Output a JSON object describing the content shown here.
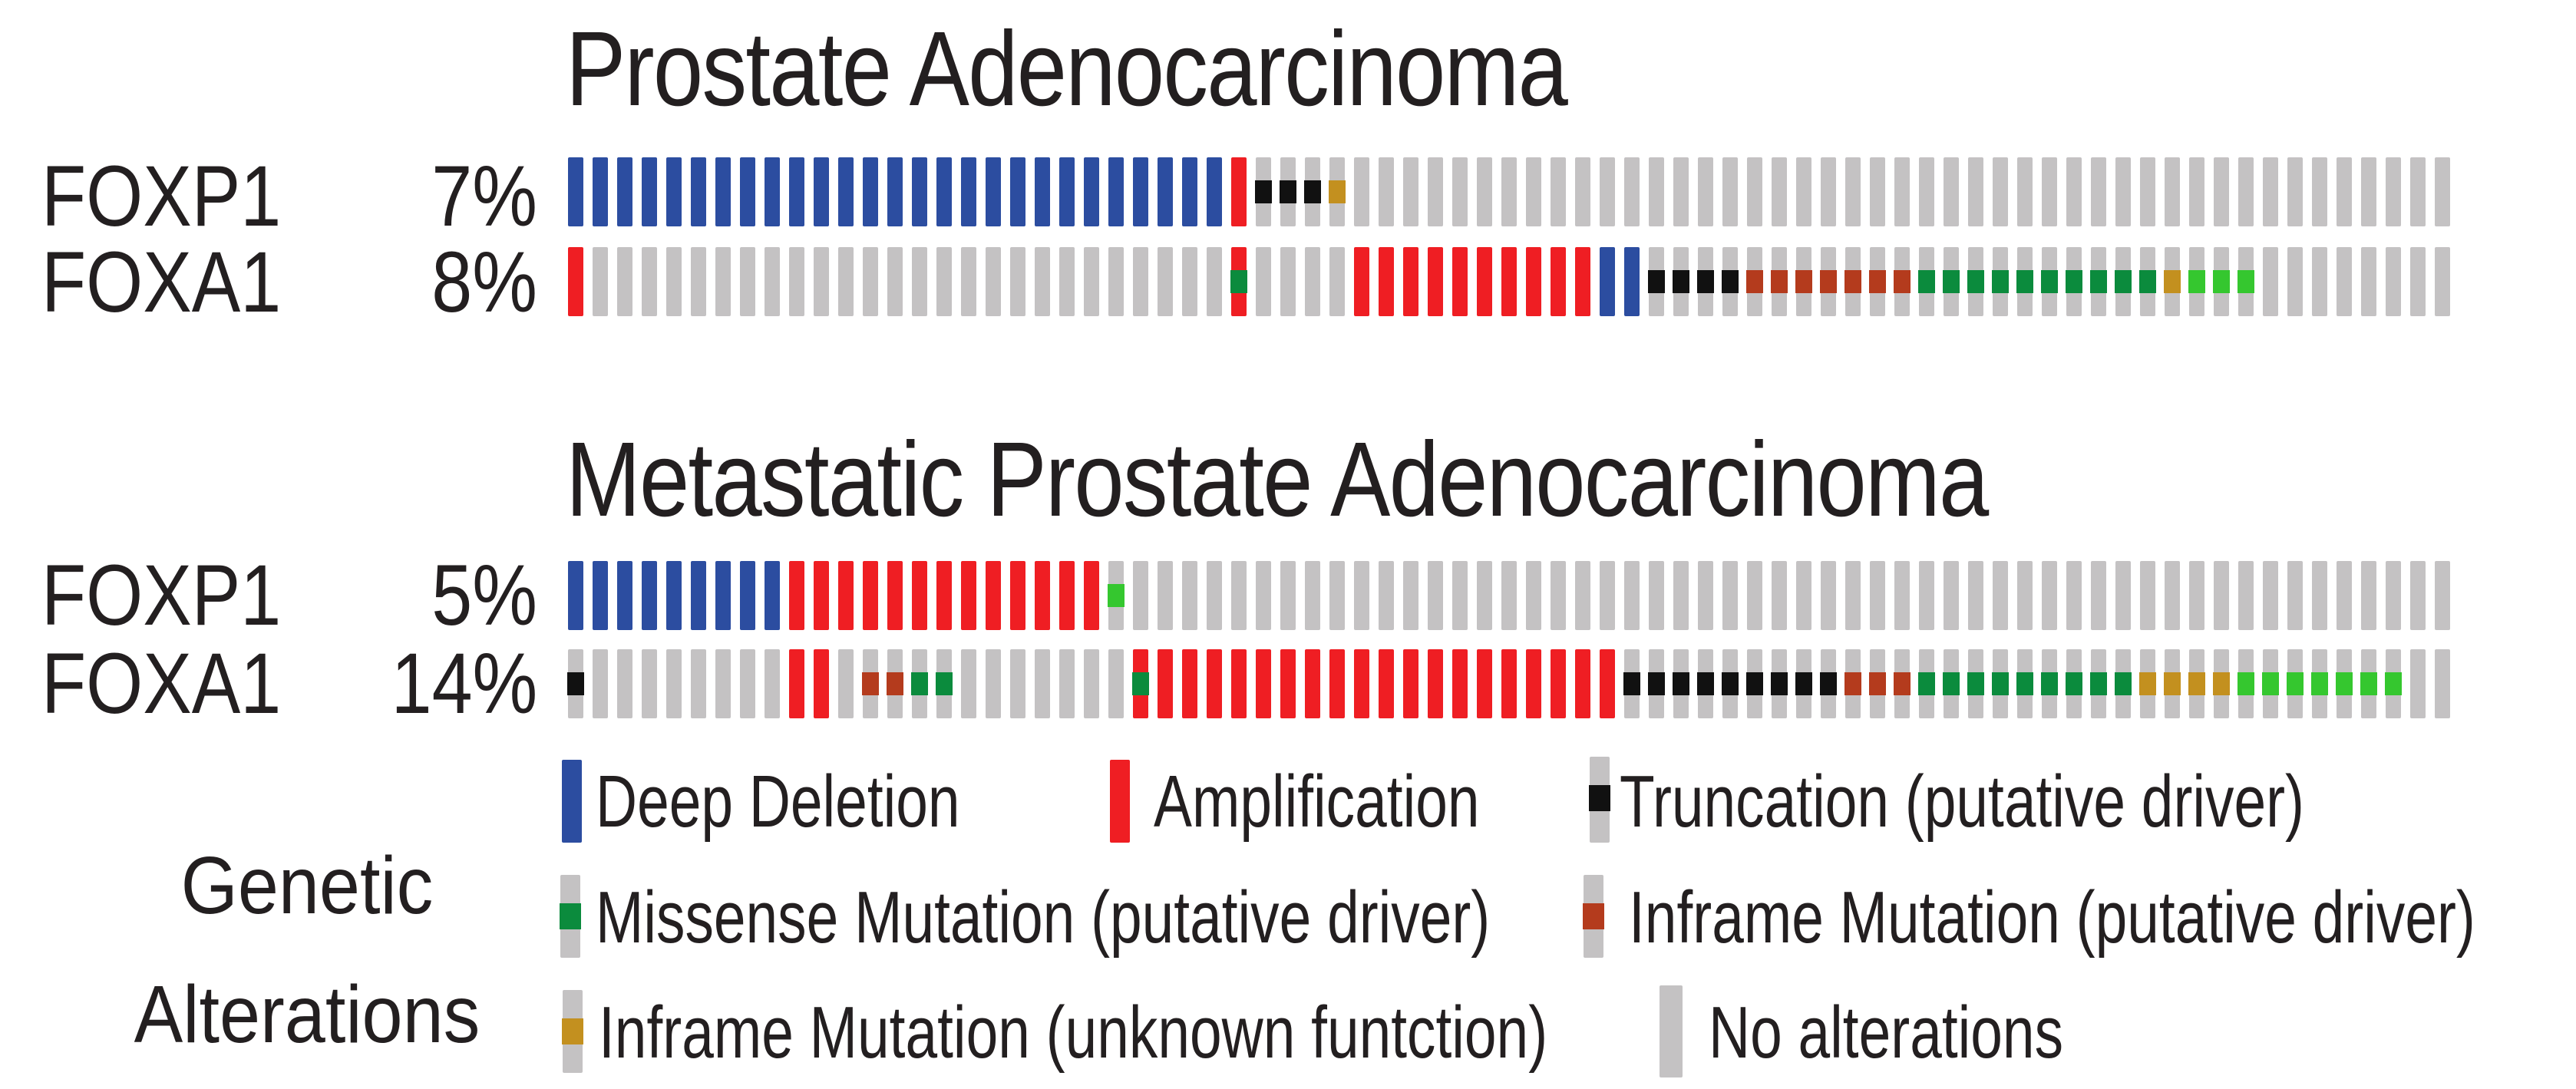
{
  "chart_data": {
    "type": "heatmap",
    "subtype": "oncoprint",
    "legend_title": "Genetic Alterations",
    "text_color": "#231f20",
    "sections": [
      {
        "title": "Prostate Adenocarcinoma"
      },
      {
        "title": "Metastatic Prostate Adenocarcinoma"
      }
    ],
    "alteration_styles": {
      "D": {
        "label": "Deep Deletion",
        "bar": "#2c4da0"
      },
      "A": {
        "label": "Amplification",
        "bar": "#ef1e23"
      },
      "N": {
        "label": "No alterations",
        "bar": "#c4c2c3"
      },
      "T": {
        "label": "Truncation (putative driver)",
        "bar": "#c4c2c3",
        "tick": "#111111"
      },
      "M": {
        "label": "Missense Mutation (putative driver)",
        "bar": "#c4c2c3",
        "tick": "#0b8b3d"
      },
      "m": {
        "label": "Missense Mutation (putative driver)",
        "bar": "#c4c2c3",
        "tick": "#35c72f"
      },
      "I": {
        "label": "Inframe Mutation (putative driver)",
        "bar": "#c4c2c3",
        "tick": "#b43b1d"
      },
      "U": {
        "label": "Inframe Mutation (unknown funtction)",
        "bar": "#c4c2c3",
        "tick": "#c3901f"
      },
      "AM": {
        "label": "Amplification + Missense Mutation (putative driver)",
        "bar": "#ef1e23",
        "tick": "#0b8b3d"
      }
    },
    "tracks": [
      {
        "section": 0,
        "gene": "FOXP1",
        "percent": "7%",
        "segments": [
          [
            "D",
            27
          ],
          [
            "A",
            1
          ],
          [
            "T",
            3
          ],
          [
            "U",
            1
          ],
          [
            "N",
            45
          ]
        ]
      },
      {
        "section": 0,
        "gene": "FOXA1",
        "percent": "8%",
        "segments": [
          [
            "A",
            1
          ],
          [
            "N",
            26
          ],
          [
            "AM",
            1
          ],
          [
            "N",
            4
          ],
          [
            "A",
            10
          ],
          [
            "D",
            2
          ],
          [
            "T",
            4
          ],
          [
            "I",
            7
          ],
          [
            "M",
            10
          ],
          [
            "U",
            1
          ],
          [
            "m",
            3
          ],
          [
            "N",
            8
          ]
        ]
      },
      {
        "section": 1,
        "gene": "FOXP1",
        "percent": "5%",
        "segments": [
          [
            "D",
            9
          ],
          [
            "A",
            13
          ],
          [
            "m",
            1
          ],
          [
            "N",
            54
          ]
        ]
      },
      {
        "section": 1,
        "gene": "FOXA1",
        "percent": "14%",
        "segments": [
          [
            "T",
            1
          ],
          [
            "N",
            8
          ],
          [
            "A",
            2
          ],
          [
            "N",
            1
          ],
          [
            "I",
            2
          ],
          [
            "M",
            2
          ],
          [
            "N",
            7
          ],
          [
            "AM",
            1
          ],
          [
            "A",
            19
          ],
          [
            "T",
            9
          ],
          [
            "I",
            3
          ],
          [
            "M",
            9
          ],
          [
            "U",
            4
          ],
          [
            "m",
            7
          ],
          [
            "N",
            2
          ]
        ]
      }
    ],
    "legend": [
      {
        "label": "Deep Deletion",
        "bar": "#2c4da0"
      },
      {
        "label": "Amplification",
        "bar": "#ef1e23"
      },
      {
        "label": "Truncation (putative driver)",
        "bar": "#c4c2c3",
        "tick": "#111111"
      },
      {
        "label": "Missense Mutation (putative driver)",
        "bar": "#c4c2c3",
        "tick": "#0b8b3d"
      },
      {
        "label": "Inframe Mutation (putative driver)",
        "bar": "#c4c2c3",
        "tick": "#b43b1d"
      },
      {
        "label": "Inframe Mutation (unknown funtction)",
        "bar": "#c4c2c3",
        "tick": "#c3901f"
      },
      {
        "label": "No alterations",
        "bar": "#c4c2c3"
      }
    ]
  }
}
